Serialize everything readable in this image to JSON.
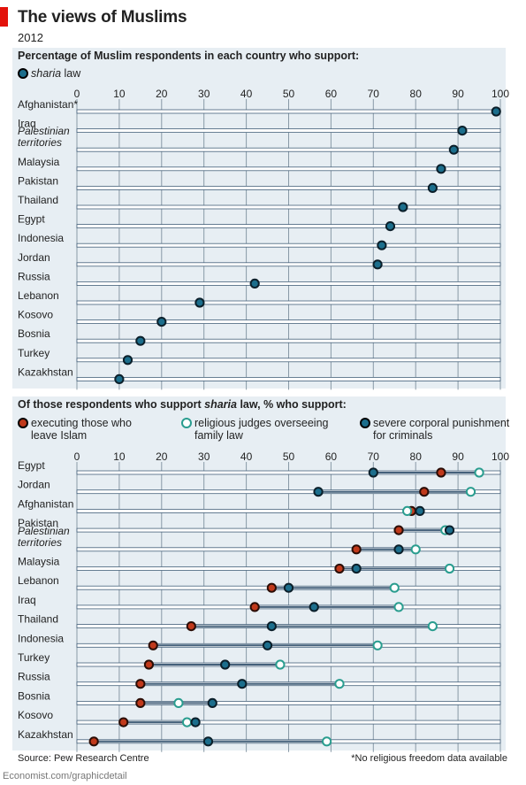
{
  "header": {
    "title": "The views of Muslims",
    "subtitle": "2012"
  },
  "footer": {
    "source": "Source: Pew Research Centre",
    "note": "*No religious freedom data available",
    "credit": "Economist.com/graphicdetail"
  },
  "colors": {
    "sharia": "#1c6e8c",
    "executing": "#c0391b",
    "judges_fill": "#ffffff",
    "judges_stroke": "#2a9d8f",
    "corporal": "#1c6e8c",
    "panel_bg": "#e7eef3",
    "grid": "#8899a6"
  },
  "chart_data": [
    {
      "type": "scatter",
      "title": "Percentage of Muslim respondents in each country who support:",
      "xlim": [
        0,
        100
      ],
      "xticks": [
        "0",
        "10",
        "20",
        "30",
        "40",
        "50",
        "60",
        "70",
        "80",
        "90",
        "100"
      ],
      "grid": true,
      "legend_placement": "top-left",
      "legend": [
        {
          "italic": "sharia",
          "text": " law"
        }
      ],
      "categories": [
        [
          "Afghanistan*"
        ],
        [
          "Iraq"
        ],
        [
          "Palestinian",
          "territories"
        ],
        [
          "Malaysia"
        ],
        [
          "Pakistan"
        ],
        [
          "Thailand"
        ],
        [
          "Egypt"
        ],
        [
          "Indonesia"
        ],
        [
          "Jordan"
        ],
        [
          "Russia"
        ],
        [
          "Lebanon"
        ],
        [
          "Kosovo"
        ],
        [
          "Bosnia"
        ],
        [
          "Turkey"
        ],
        [
          "Kazakhstan"
        ]
      ],
      "series": [
        {
          "name": "sharia law",
          "values": [
            99,
            91,
            89,
            86,
            84,
            77,
            74,
            72,
            71,
            42,
            29,
            20,
            15,
            12,
            10
          ]
        }
      ]
    },
    {
      "type": "scatter",
      "title_pre": "Of those respondents who support ",
      "title_italic": "sharia",
      "title_post": " law, % who support:",
      "xlim": [
        0,
        100
      ],
      "xticks": [
        "0",
        "10",
        "20",
        "30",
        "40",
        "50",
        "60",
        "70",
        "80",
        "90",
        "100"
      ],
      "grid": true,
      "legend_placement": "top",
      "legend": [
        {
          "lines": [
            "executing those who",
            "leave Islam"
          ]
        },
        {
          "lines": [
            "religious judges overseeing",
            "family law"
          ]
        },
        {
          "lines": [
            "severe corporal punishment",
            "for criminals"
          ]
        }
      ],
      "categories": [
        [
          "Egypt"
        ],
        [
          "Jordan"
        ],
        [
          "Afghanistan"
        ],
        [
          "Pakistan"
        ],
        [
          "Palestinian",
          "territories"
        ],
        [
          "Malaysia"
        ],
        [
          "Lebanon"
        ],
        [
          "Iraq"
        ],
        [
          "Thailand"
        ],
        [
          "Indonesia"
        ],
        [
          "Turkey"
        ],
        [
          "Russia"
        ],
        [
          "Bosnia"
        ],
        [
          "Kosovo"
        ],
        [
          "Kazakhstan"
        ]
      ],
      "series": [
        {
          "name": "executing those who leave Islam",
          "values": [
            86,
            82,
            79,
            76,
            66,
            62,
            46,
            42,
            27,
            18,
            17,
            15,
            15,
            11,
            4
          ]
        },
        {
          "name": "religious judges overseeing family law",
          "values": [
            95,
            93,
            78,
            87,
            80,
            88,
            75,
            76,
            84,
            71,
            48,
            62,
            24,
            26,
            59
          ]
        },
        {
          "name": "severe corporal punishment for criminals",
          "values": [
            70,
            57,
            81,
            88,
            76,
            66,
            50,
            56,
            46,
            45,
            35,
            39,
            32,
            28,
            31
          ]
        }
      ]
    }
  ]
}
